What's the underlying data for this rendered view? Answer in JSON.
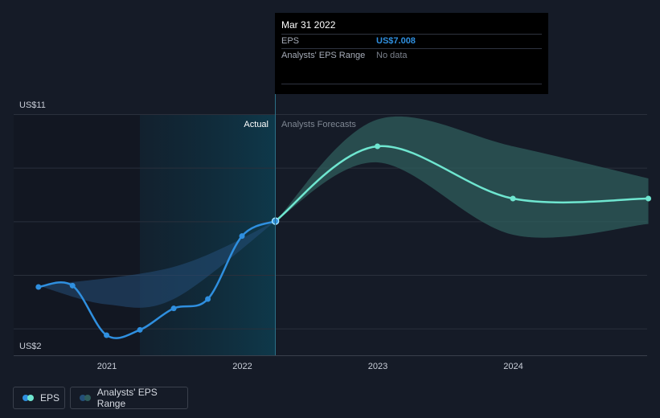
{
  "chart_data": {
    "type": "line",
    "y_axis": {
      "min_label": "US$2",
      "max_label": "US$11",
      "ylim": [
        2,
        11
      ]
    },
    "x_ticks": [
      "2021",
      "2022",
      "2023",
      "2024"
    ],
    "section_labels": {
      "actual": "Actual",
      "forecast": "Analysts Forecasts"
    },
    "series": [
      {
        "name": "EPS",
        "kind": "actual",
        "points": [
          [
            "2020-06-30",
            4.55
          ],
          [
            "2020-09-30",
            4.6
          ],
          [
            "2020-12-31",
            2.75
          ],
          [
            "2021-03-31",
            2.95
          ],
          [
            "2021-06-30",
            3.75
          ],
          [
            "2021-09-30",
            4.1
          ],
          [
            "2021-12-31",
            6.45
          ],
          [
            "2022-03-31",
            7.008
          ]
        ]
      },
      {
        "name": "EPS",
        "kind": "forecast",
        "points": [
          [
            "2022-03-31",
            7.008
          ],
          [
            "2022-12-31",
            9.8
          ],
          [
            "2023-12-31",
            7.85
          ],
          [
            "2024-12-31",
            7.85
          ]
        ]
      }
    ],
    "ranges": [
      {
        "name": "Analysts' EPS Range",
        "kind": "past",
        "upper": [
          [
            "2020-06-30",
            4.6
          ],
          [
            "2021-06-30",
            5.3
          ],
          [
            "2022-03-31",
            7.0
          ]
        ],
        "lower": [
          [
            "2020-06-30",
            4.6
          ],
          [
            "2020-12-31",
            3.9
          ],
          [
            "2021-06-30",
            4.1
          ],
          [
            "2022-03-31",
            7.0
          ]
        ]
      },
      {
        "name": "Analysts' EPS Range",
        "kind": "forecast",
        "upper": [
          [
            "2022-03-31",
            7.008
          ],
          [
            "2022-12-31",
            10.8
          ],
          [
            "2023-12-31",
            9.8
          ],
          [
            "2024-12-31",
            8.6
          ]
        ],
        "lower": [
          [
            "2022-03-31",
            7.008
          ],
          [
            "2022-12-31",
            9.2
          ],
          [
            "2023-12-31",
            6.5
          ],
          [
            "2024-12-31",
            6.9
          ]
        ]
      }
    ],
    "highlight": {
      "date": "2022-03-31",
      "value": 7.008
    },
    "grid": true
  },
  "tooltip": {
    "date": "Mar 31 2022",
    "eps_label": "EPS",
    "eps_value": "US$7.008",
    "range_label": "Analysts' EPS Range",
    "range_value": "No data"
  },
  "legend": {
    "eps_label": "EPS",
    "range_label": "Analysts' EPS Range"
  },
  "colors": {
    "background": "#151b27",
    "eps_line": "#2f8fdf",
    "forecast_line": "#6fe6d0",
    "forecast_band": "#2f5d5c",
    "past_band": "#244f78",
    "actual_shade": "#0e2b3b",
    "grid": "#2a303c"
  }
}
